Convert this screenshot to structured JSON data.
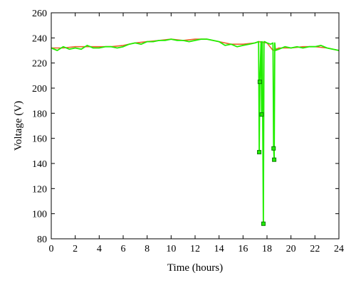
{
  "chart_data": {
    "type": "line",
    "title": "",
    "xlabel": "Time (hours)",
    "ylabel": "Voltage (V)",
    "xlim": [
      0,
      24
    ],
    "ylim": [
      80,
      260
    ],
    "xticks": [
      0,
      2,
      4,
      6,
      8,
      10,
      12,
      14,
      16,
      18,
      20,
      22,
      24
    ],
    "yticks": [
      80,
      100,
      120,
      140,
      160,
      180,
      200,
      220,
      240,
      260
    ],
    "grid": false,
    "legend": "none",
    "series": [
      {
        "color": "#e8622a",
        "x": [
          0,
          1,
          2,
          3,
          4,
          5,
          6,
          7,
          8,
          9,
          10,
          11,
          12,
          13,
          14,
          15,
          16,
          17,
          17.3,
          18,
          18.5,
          19,
          20,
          21,
          22,
          23,
          24
        ],
        "y": [
          232,
          232,
          233,
          233,
          233,
          233,
          234,
          236,
          237,
          238,
          239,
          238,
          239,
          239,
          237,
          235,
          235,
          236,
          237,
          236,
          230,
          232,
          232,
          233,
          233,
          232,
          230
        ]
      },
      {
        "color": "#22ee00",
        "x": [
          0,
          0.5,
          1,
          1.5,
          2,
          2.5,
          3,
          3.5,
          4,
          4.5,
          5,
          5.5,
          6,
          6.5,
          7,
          7.5,
          8,
          8.5,
          9,
          9.5,
          10,
          10.5,
          11,
          11.5,
          12,
          12.5,
          13,
          13.5,
          14,
          14.5,
          15,
          15.5,
          16,
          16.5,
          17,
          17.3,
          17.35,
          17.4,
          17.5,
          17.55,
          17.6,
          17.7,
          17.75,
          17.8,
          18.0,
          18.3,
          18.5,
          18.55,
          18.6,
          18.65,
          18.7,
          19,
          19.5,
          20,
          20.5,
          21,
          21.5,
          22,
          22.5,
          23,
          23.5,
          24
        ],
        "y": [
          232,
          230,
          233,
          231,
          232,
          231,
          234,
          232,
          232,
          233,
          233,
          232,
          233,
          235,
          236,
          235,
          237,
          237,
          238,
          238,
          239,
          238,
          238,
          237,
          238,
          239,
          239,
          238,
          237,
          234,
          235,
          233,
          234,
          235,
          236,
          237,
          149,
          205,
          237,
          179,
          237,
          92,
          237,
          237,
          236,
          235,
          236,
          152,
          143,
          236,
          230,
          231,
          233,
          232,
          233,
          232,
          233,
          233,
          234,
          232,
          231,
          230
        ]
      }
    ],
    "markers": {
      "color": "#22ee00",
      "x": [
        17.35,
        17.4,
        17.55,
        17.7,
        18.55,
        18.6
      ],
      "y": [
        149,
        205,
        179,
        92,
        152,
        143
      ]
    }
  }
}
